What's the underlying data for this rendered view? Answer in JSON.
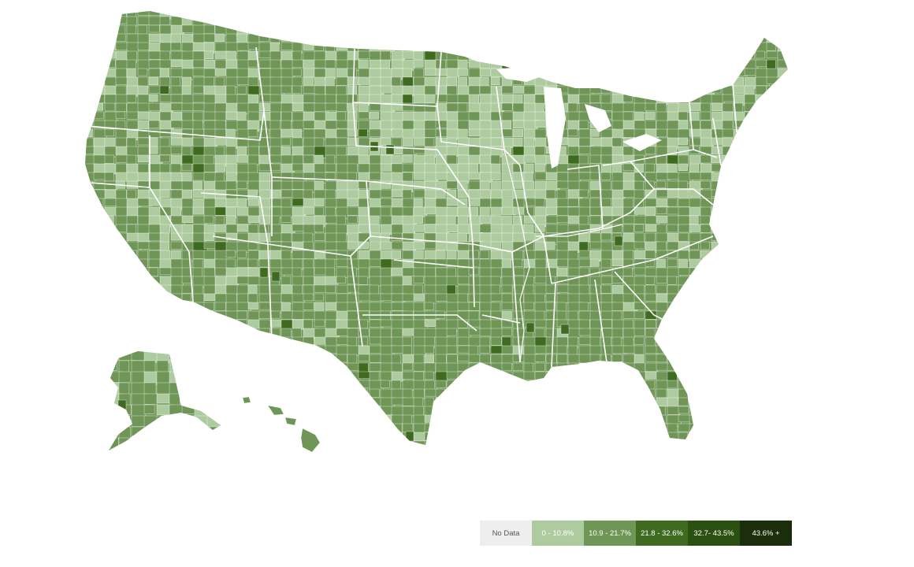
{
  "legend": {
    "items": [
      {
        "label": "No Data",
        "color": "#eeeeee",
        "text_color": "#555555"
      },
      {
        "label": "0 - 10.8%",
        "color": "#aecba0",
        "text_color": "#ffffff"
      },
      {
        "label": "10.9 - 21.7%",
        "color": "#6f9657",
        "text_color": "#ffffff"
      },
      {
        "label": "21.8 - 32.6%",
        "color": "#3e6b1f",
        "text_color": "#ffffff"
      },
      {
        "label": "32.7- 43.5%",
        "color": "#2c5011",
        "text_color": "#ffffff"
      },
      {
        "label": "43.6% +",
        "color": "#1b2e0b",
        "text_color": "#ffffff"
      }
    ]
  },
  "regions": [
    {
      "name": "contiguous-us",
      "fill": "#6f9657"
    },
    {
      "name": "alaska",
      "fill": "#6f9657"
    },
    {
      "name": "hawaii",
      "fill": "#6f9657"
    }
  ]
}
